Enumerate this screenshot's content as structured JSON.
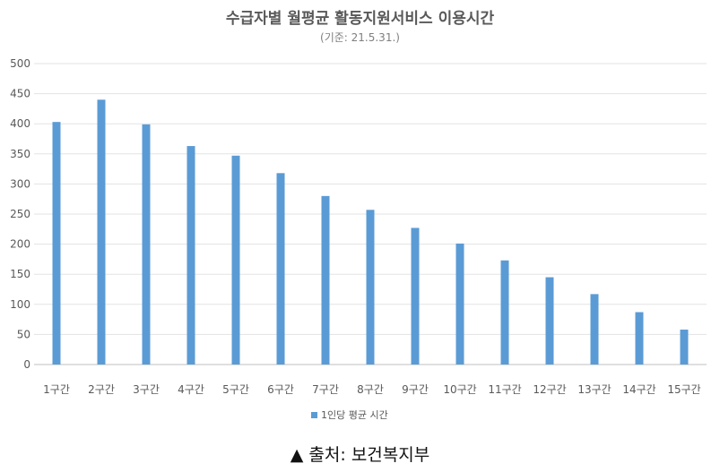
{
  "chart_data": {
    "type": "bar",
    "title": "수급자별 월평균 활동지원서비스 이용시간",
    "subtitle": "(기준: 21.5.31.)",
    "categories": [
      "1구간",
      "2구간",
      "3구간",
      "4구간",
      "5구간",
      "6구간",
      "7구간",
      "8구간",
      "9구간",
      "10구간",
      "11구간",
      "12구간",
      "13구간",
      "14구간",
      "15구간"
    ],
    "series": [
      {
        "name": "1인당 평균 시간",
        "values": [
          403,
          440,
          399,
          363,
          347,
          318,
          280,
          257,
          227,
          201,
          173,
          145,
          117,
          87,
          58
        ]
      }
    ],
    "yticks": [
      "500",
      "450",
      "400",
      "350",
      "300",
      "250",
      "200",
      "150",
      "100",
      "50",
      "0"
    ],
    "ylim": [
      0,
      500
    ],
    "grid": true,
    "legend": "bottom",
    "bar_color": "#5b9bd5"
  },
  "caption": "▲ 출처: 보건복지부"
}
